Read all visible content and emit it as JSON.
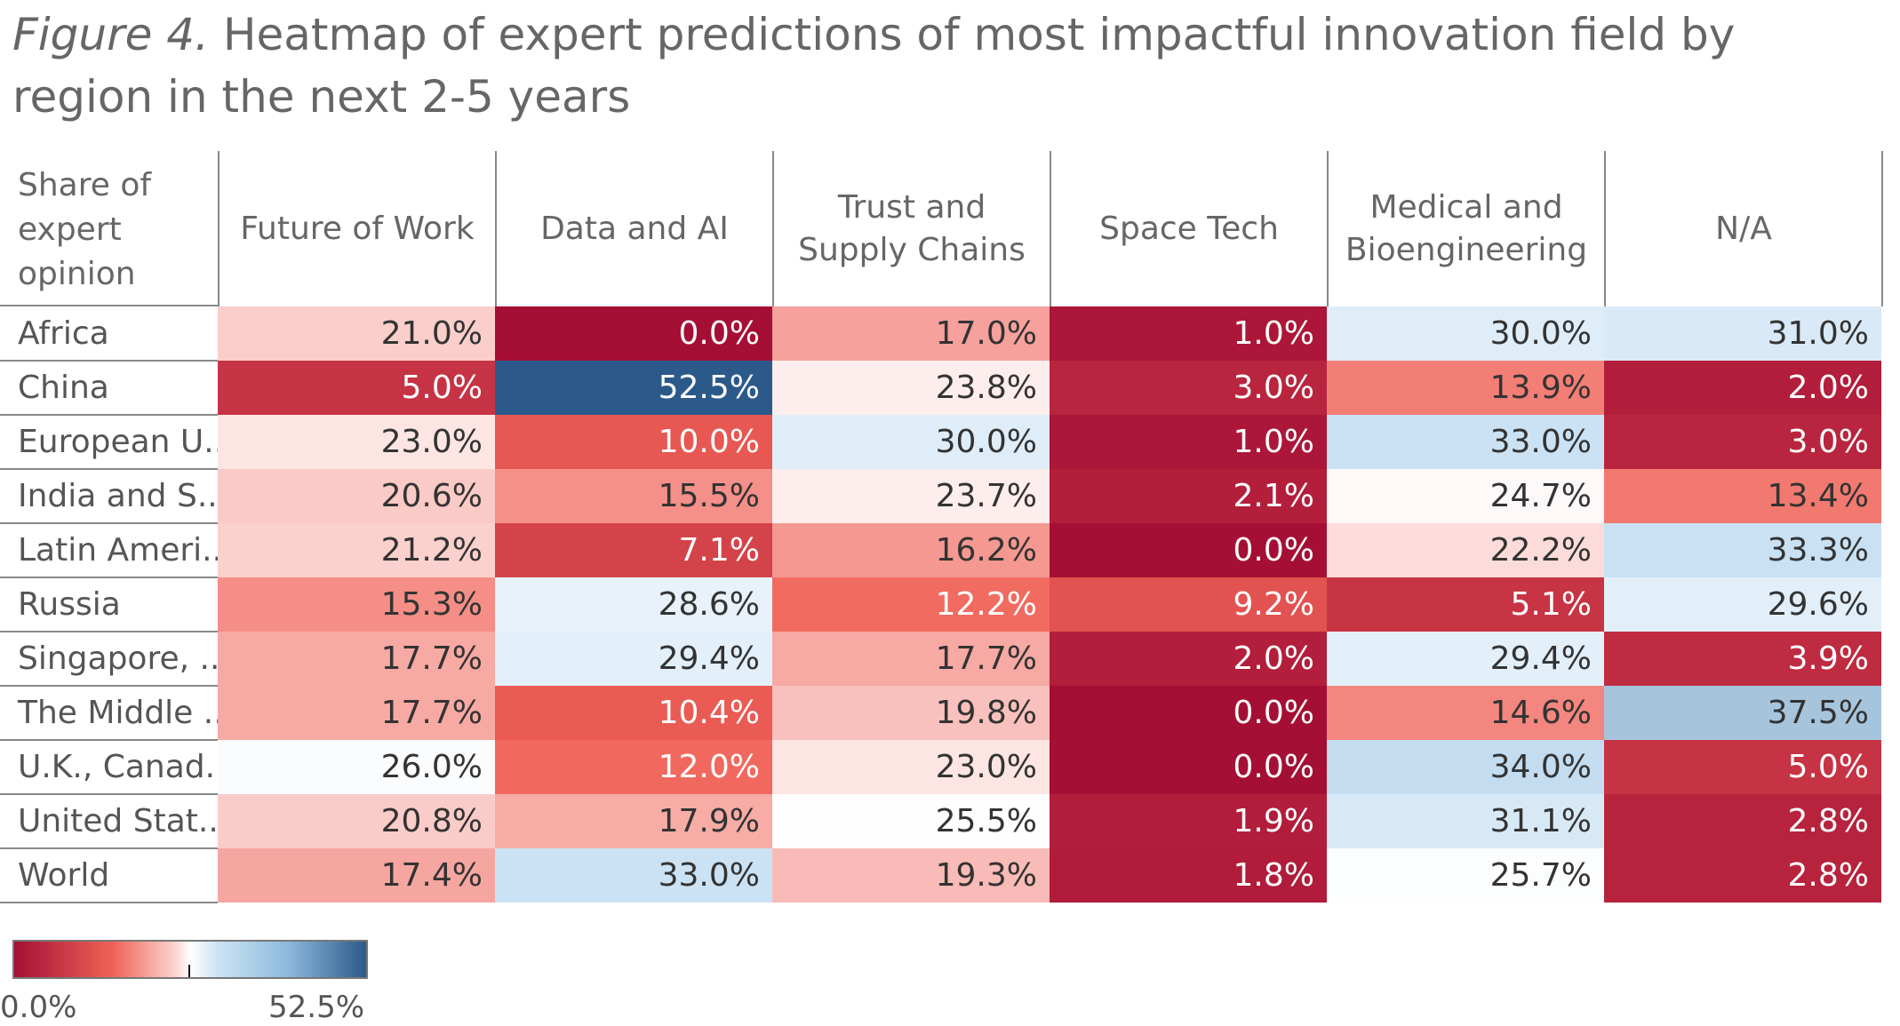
{
  "title": {
    "figure_label": "Figure 4.",
    "text": " Heatmap of expert predictions of most impactful innovation field by region in the next 2-5 years"
  },
  "chart_data": {
    "type": "heatmap",
    "corner_label": "Share of expert opinion",
    "columns": [
      "Future of Work",
      "Data and AI",
      "Trust and Supply Chains",
      "Space Tech",
      "Medical and Bioengineering",
      "N/A"
    ],
    "rows": [
      "Africa",
      "China",
      "European U..",
      "India and S..",
      "Latin Ameri..",
      "Russia",
      "Singapore, ..",
      "The Middle ..",
      "U.K., Canad..",
      "United Stat..",
      "World"
    ],
    "values": [
      [
        21.0,
        0.0,
        17.0,
        1.0,
        30.0,
        31.0
      ],
      [
        5.0,
        52.5,
        23.8,
        3.0,
        13.9,
        2.0
      ],
      [
        23.0,
        10.0,
        30.0,
        1.0,
        33.0,
        3.0
      ],
      [
        20.6,
        15.5,
        23.7,
        2.1,
        24.7,
        13.4
      ],
      [
        21.2,
        7.1,
        16.2,
        0.0,
        22.2,
        33.3
      ],
      [
        15.3,
        28.6,
        12.2,
        9.2,
        5.1,
        29.6
      ],
      [
        17.7,
        29.4,
        17.7,
        2.0,
        29.4,
        3.9
      ],
      [
        17.7,
        10.4,
        19.8,
        0.0,
        14.6,
        37.5
      ],
      [
        26.0,
        12.0,
        23.0,
        0.0,
        34.0,
        5.0
      ],
      [
        20.8,
        17.9,
        25.5,
        1.9,
        31.1,
        2.8
      ],
      [
        17.4,
        33.0,
        19.3,
        1.8,
        25.7,
        2.8
      ]
    ],
    "value_suffix": "%",
    "color_scale": {
      "min": 0.0,
      "max": 52.5,
      "min_label": "0.0%",
      "max_label": "52.5%",
      "low_color": "#a50f35",
      "mid_color": "#ffffff",
      "high_color": "#2b5a8a"
    }
  }
}
